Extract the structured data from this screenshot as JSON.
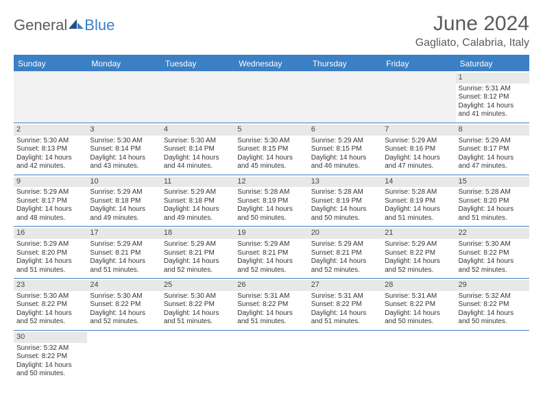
{
  "logo": {
    "general": "General",
    "blue": "Blue"
  },
  "title": "June 2024",
  "location": "Gagliato, Calabria, Italy",
  "colors": {
    "brand_blue": "#3b7fc4",
    "header_text": "#ffffff",
    "body_text": "#333333",
    "muted_text": "#5a5a5a",
    "daynum_bg": "#e8e8e8",
    "background": "#ffffff"
  },
  "typography": {
    "title_fontsize": 30,
    "location_fontsize": 16,
    "dayheader_fontsize": 12,
    "cell_fontsize": 10,
    "logo_fontsize": 22
  },
  "day_headers": [
    "Sunday",
    "Monday",
    "Tuesday",
    "Wednesday",
    "Thursday",
    "Friday",
    "Saturday"
  ],
  "weeks": [
    [
      null,
      null,
      null,
      null,
      null,
      null,
      {
        "n": "1",
        "sunrise": "Sunrise: 5:31 AM",
        "sunset": "Sunset: 8:12 PM",
        "dl1": "Daylight: 14 hours",
        "dl2": "and 41 minutes."
      }
    ],
    [
      {
        "n": "2",
        "sunrise": "Sunrise: 5:30 AM",
        "sunset": "Sunset: 8:13 PM",
        "dl1": "Daylight: 14 hours",
        "dl2": "and 42 minutes."
      },
      {
        "n": "3",
        "sunrise": "Sunrise: 5:30 AM",
        "sunset": "Sunset: 8:14 PM",
        "dl1": "Daylight: 14 hours",
        "dl2": "and 43 minutes."
      },
      {
        "n": "4",
        "sunrise": "Sunrise: 5:30 AM",
        "sunset": "Sunset: 8:14 PM",
        "dl1": "Daylight: 14 hours",
        "dl2": "and 44 minutes."
      },
      {
        "n": "5",
        "sunrise": "Sunrise: 5:30 AM",
        "sunset": "Sunset: 8:15 PM",
        "dl1": "Daylight: 14 hours",
        "dl2": "and 45 minutes."
      },
      {
        "n": "6",
        "sunrise": "Sunrise: 5:29 AM",
        "sunset": "Sunset: 8:15 PM",
        "dl1": "Daylight: 14 hours",
        "dl2": "and 46 minutes."
      },
      {
        "n": "7",
        "sunrise": "Sunrise: 5:29 AM",
        "sunset": "Sunset: 8:16 PM",
        "dl1": "Daylight: 14 hours",
        "dl2": "and 47 minutes."
      },
      {
        "n": "8",
        "sunrise": "Sunrise: 5:29 AM",
        "sunset": "Sunset: 8:17 PM",
        "dl1": "Daylight: 14 hours",
        "dl2": "and 47 minutes."
      }
    ],
    [
      {
        "n": "9",
        "sunrise": "Sunrise: 5:29 AM",
        "sunset": "Sunset: 8:17 PM",
        "dl1": "Daylight: 14 hours",
        "dl2": "and 48 minutes."
      },
      {
        "n": "10",
        "sunrise": "Sunrise: 5:29 AM",
        "sunset": "Sunset: 8:18 PM",
        "dl1": "Daylight: 14 hours",
        "dl2": "and 49 minutes."
      },
      {
        "n": "11",
        "sunrise": "Sunrise: 5:29 AM",
        "sunset": "Sunset: 8:18 PM",
        "dl1": "Daylight: 14 hours",
        "dl2": "and 49 minutes."
      },
      {
        "n": "12",
        "sunrise": "Sunrise: 5:28 AM",
        "sunset": "Sunset: 8:19 PM",
        "dl1": "Daylight: 14 hours",
        "dl2": "and 50 minutes."
      },
      {
        "n": "13",
        "sunrise": "Sunrise: 5:28 AM",
        "sunset": "Sunset: 8:19 PM",
        "dl1": "Daylight: 14 hours",
        "dl2": "and 50 minutes."
      },
      {
        "n": "14",
        "sunrise": "Sunrise: 5:28 AM",
        "sunset": "Sunset: 8:19 PM",
        "dl1": "Daylight: 14 hours",
        "dl2": "and 51 minutes."
      },
      {
        "n": "15",
        "sunrise": "Sunrise: 5:28 AM",
        "sunset": "Sunset: 8:20 PM",
        "dl1": "Daylight: 14 hours",
        "dl2": "and 51 minutes."
      }
    ],
    [
      {
        "n": "16",
        "sunrise": "Sunrise: 5:29 AM",
        "sunset": "Sunset: 8:20 PM",
        "dl1": "Daylight: 14 hours",
        "dl2": "and 51 minutes."
      },
      {
        "n": "17",
        "sunrise": "Sunrise: 5:29 AM",
        "sunset": "Sunset: 8:21 PM",
        "dl1": "Daylight: 14 hours",
        "dl2": "and 51 minutes."
      },
      {
        "n": "18",
        "sunrise": "Sunrise: 5:29 AM",
        "sunset": "Sunset: 8:21 PM",
        "dl1": "Daylight: 14 hours",
        "dl2": "and 52 minutes."
      },
      {
        "n": "19",
        "sunrise": "Sunrise: 5:29 AM",
        "sunset": "Sunset: 8:21 PM",
        "dl1": "Daylight: 14 hours",
        "dl2": "and 52 minutes."
      },
      {
        "n": "20",
        "sunrise": "Sunrise: 5:29 AM",
        "sunset": "Sunset: 8:21 PM",
        "dl1": "Daylight: 14 hours",
        "dl2": "and 52 minutes."
      },
      {
        "n": "21",
        "sunrise": "Sunrise: 5:29 AM",
        "sunset": "Sunset: 8:22 PM",
        "dl1": "Daylight: 14 hours",
        "dl2": "and 52 minutes."
      },
      {
        "n": "22",
        "sunrise": "Sunrise: 5:30 AM",
        "sunset": "Sunset: 8:22 PM",
        "dl1": "Daylight: 14 hours",
        "dl2": "and 52 minutes."
      }
    ],
    [
      {
        "n": "23",
        "sunrise": "Sunrise: 5:30 AM",
        "sunset": "Sunset: 8:22 PM",
        "dl1": "Daylight: 14 hours",
        "dl2": "and 52 minutes."
      },
      {
        "n": "24",
        "sunrise": "Sunrise: 5:30 AM",
        "sunset": "Sunset: 8:22 PM",
        "dl1": "Daylight: 14 hours",
        "dl2": "and 52 minutes."
      },
      {
        "n": "25",
        "sunrise": "Sunrise: 5:30 AM",
        "sunset": "Sunset: 8:22 PM",
        "dl1": "Daylight: 14 hours",
        "dl2": "and 51 minutes."
      },
      {
        "n": "26",
        "sunrise": "Sunrise: 5:31 AM",
        "sunset": "Sunset: 8:22 PM",
        "dl1": "Daylight: 14 hours",
        "dl2": "and 51 minutes."
      },
      {
        "n": "27",
        "sunrise": "Sunrise: 5:31 AM",
        "sunset": "Sunset: 8:22 PM",
        "dl1": "Daylight: 14 hours",
        "dl2": "and 51 minutes."
      },
      {
        "n": "28",
        "sunrise": "Sunrise: 5:31 AM",
        "sunset": "Sunset: 8:22 PM",
        "dl1": "Daylight: 14 hours",
        "dl2": "and 50 minutes."
      },
      {
        "n": "29",
        "sunrise": "Sunrise: 5:32 AM",
        "sunset": "Sunset: 8:22 PM",
        "dl1": "Daylight: 14 hours",
        "dl2": "and 50 minutes."
      }
    ],
    [
      {
        "n": "30",
        "sunrise": "Sunrise: 5:32 AM",
        "sunset": "Sunset: 8:22 PM",
        "dl1": "Daylight: 14 hours",
        "dl2": "and 50 minutes."
      },
      null,
      null,
      null,
      null,
      null,
      null
    ]
  ]
}
